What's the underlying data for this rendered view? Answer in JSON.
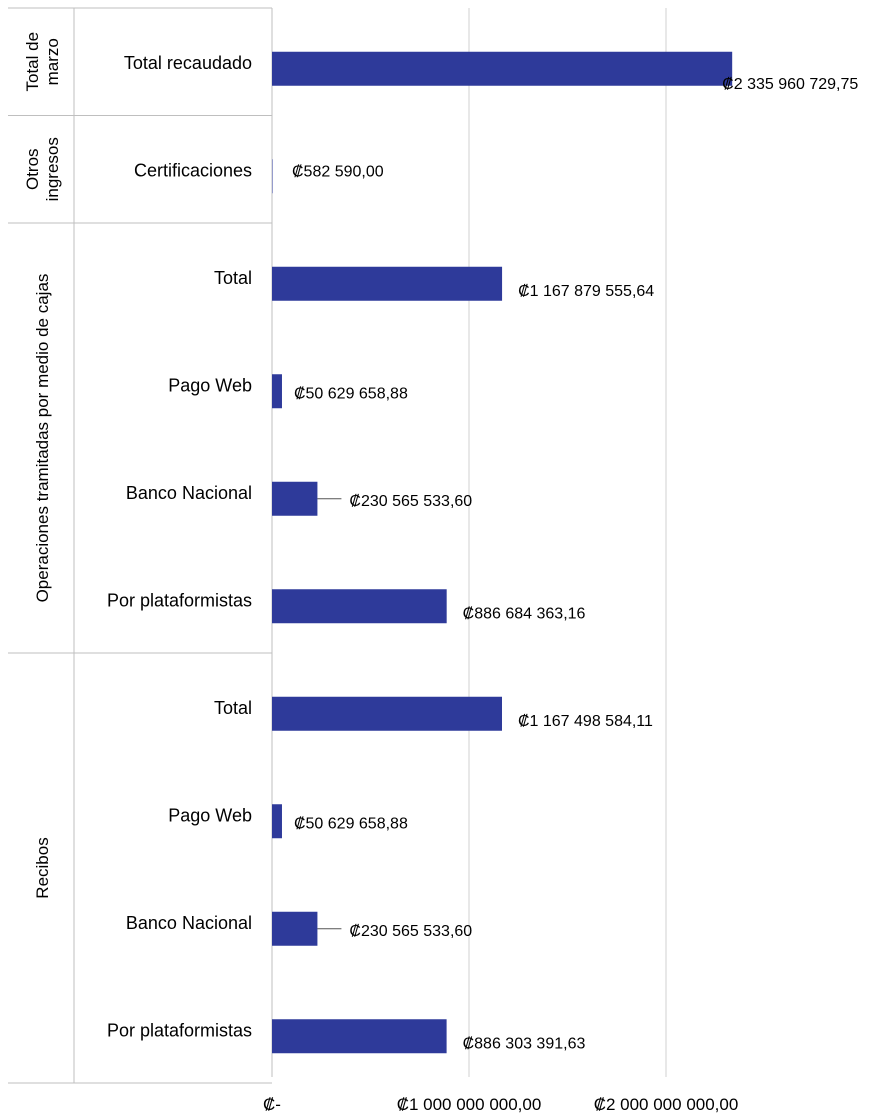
{
  "colors": {
    "bar": "#2e3a9a",
    "grid": "#d9d9d9",
    "divider": "#bfbfbf",
    "text": "#000000"
  },
  "chart_data": {
    "type": "bar",
    "orientation": "horizontal",
    "title": "",
    "xlabel": "",
    "ylabel": "",
    "xlim": [
      0,
      2000000000
    ],
    "x_ticks": [
      0,
      1000000000,
      2000000000
    ],
    "x_tick_labels": [
      "₡-",
      "₡1 000 000 000,00",
      "₡2 000 000 000,00"
    ],
    "grid": true,
    "legend": "none",
    "groups": [
      {
        "label": "Total de marzo",
        "label_lines": [
          "Total de",
          "marzo"
        ],
        "items": [
          {
            "category": "Total recaudado",
            "value": 2335960729.75,
            "label": "₡2 335 960 729,75"
          }
        ]
      },
      {
        "label": "Otros ingresos",
        "label_lines": [
          "Otros",
          "ingresos"
        ],
        "items": [
          {
            "category": "Certificaciones",
            "value": 582590.0,
            "label": "₡582 590,00"
          }
        ]
      },
      {
        "label": "Operaciones tramitadas  por medio de cajas",
        "label_lines": [
          "Operaciones tramitadas  por medio de cajas"
        ],
        "items": [
          {
            "category": "Total",
            "value": 1167879555.64,
            "label": "₡1 167 879 555,64"
          },
          {
            "category": "Pago Web",
            "value": 50629658.88,
            "label": "₡50 629 658,88"
          },
          {
            "category": "Banco Nacional",
            "value": 230565533.6,
            "label": "₡230 565 533,60"
          },
          {
            "category": "Por plataformistas",
            "value": 886684363.16,
            "label": "₡886 684 363,16"
          }
        ]
      },
      {
        "label": "Recibos",
        "label_lines": [
          "Recibos"
        ],
        "items": [
          {
            "category": "Total",
            "value": 1167498584.11,
            "label": "₡1 167 498 584,11"
          },
          {
            "category": "Pago Web",
            "value": 50629658.88,
            "label": "₡50 629 658,88"
          },
          {
            "category": "Banco Nacional",
            "value": 230565533.6,
            "label": "₡230 565 533,60"
          },
          {
            "category": "Por plataformistas",
            "value": 886303391.63,
            "label": "₡886 303 391,63"
          }
        ]
      }
    ]
  }
}
